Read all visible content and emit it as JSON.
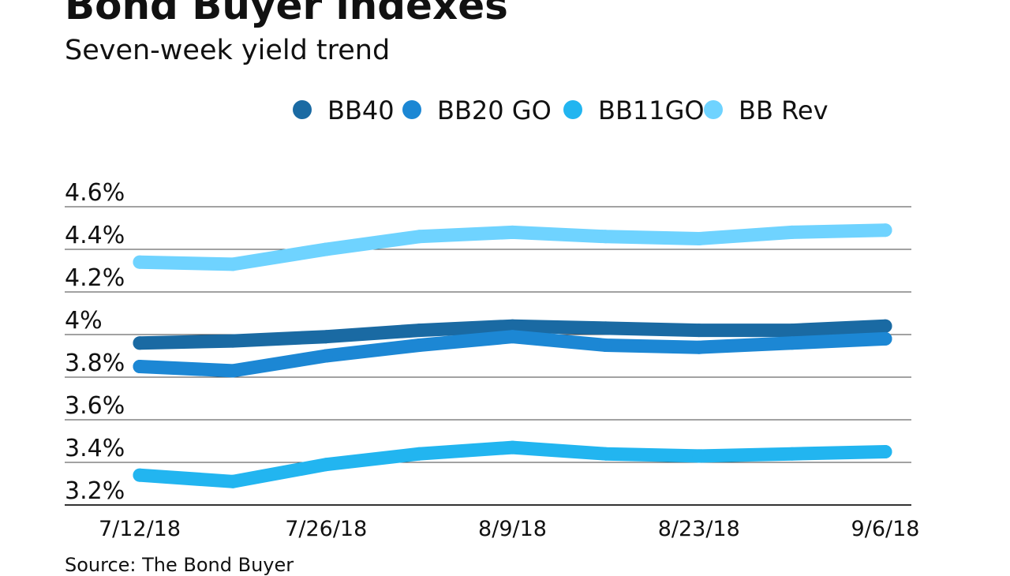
{
  "chart_data": {
    "type": "line",
    "title": "Bond Buyer indexes",
    "subtitle": "Seven-week yield trend",
    "source": "Source: The Bond Buyer",
    "xlabel": "",
    "ylabel": "",
    "x": [
      "7/12/18",
      "7/19/18",
      "7/26/18",
      "8/2/18",
      "8/9/18",
      "8/16/18",
      "8/23/18",
      "8/30/18",
      "9/6/18"
    ],
    "x_tick_labels": [
      "7/12/18",
      "7/26/18",
      "8/9/18",
      "8/23/18",
      "9/6/18"
    ],
    "y_ticks": [
      3.2,
      3.4,
      3.6,
      3.8,
      4.0,
      4.2,
      4.4,
      4.6
    ],
    "y_tick_labels": [
      "3.2%",
      "3.4%",
      "3.6%",
      "3.8%",
      "4%",
      "4.2%",
      "4.4%",
      "4.6%"
    ],
    "ylim": [
      3.2,
      4.6
    ],
    "grid": true,
    "legend_position": "top",
    "series": [
      {
        "name": "BB40",
        "color": "#1a6aa3",
        "values": [
          3.96,
          3.97,
          3.99,
          4.02,
          4.04,
          4.03,
          4.02,
          4.02,
          4.04
        ]
      },
      {
        "name": "BB20 GO",
        "color": "#1c87d4",
        "values": [
          3.85,
          3.83,
          3.9,
          3.95,
          3.99,
          3.95,
          3.94,
          3.96,
          3.98
        ]
      },
      {
        "name": "BB11GO",
        "color": "#22b5f0",
        "values": [
          3.34,
          3.31,
          3.39,
          3.44,
          3.47,
          3.44,
          3.43,
          3.44,
          3.45
        ]
      },
      {
        "name": "BB Rev",
        "color": "#6fd3ff",
        "values": [
          4.34,
          4.33,
          4.4,
          4.46,
          4.48,
          4.46,
          4.45,
          4.48,
          4.49
        ]
      }
    ]
  }
}
